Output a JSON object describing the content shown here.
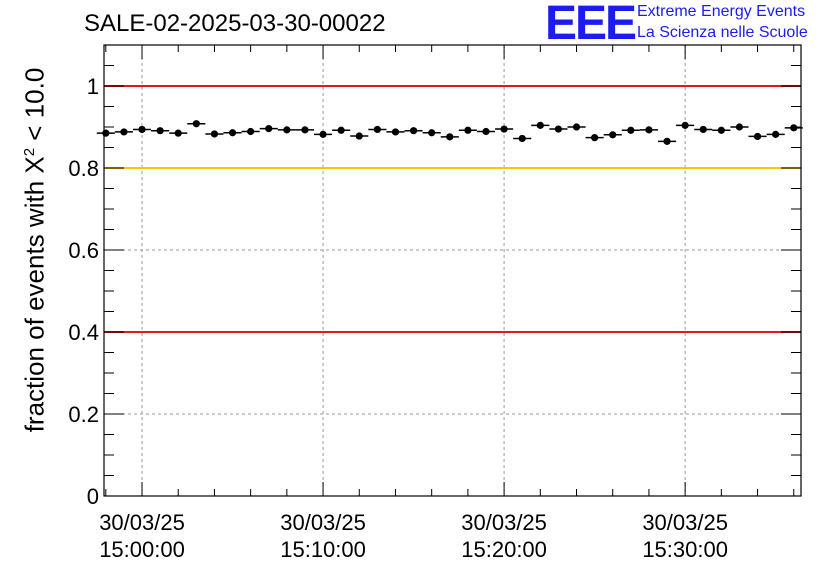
{
  "header": {
    "title": "SALE-02-2025-03-30-00022",
    "logo_text": "EEE",
    "brand_line1": "Extreme Energy Events",
    "brand_line2": "La Scienza nelle Scuole"
  },
  "y_axis": {
    "label_main": "fraction of events with Χ",
    "label_sup": "2",
    "label_tail": " < 10.0"
  },
  "colors": {
    "red_line": "#e8141e",
    "yellow_line": "#ffc400",
    "points": "#000000",
    "logo": "#1c1cf0",
    "grid": "#9a9a9a"
  },
  "chart_data": {
    "type": "scatter",
    "title": "SALE-02-2025-03-30-00022",
    "xlabel": "",
    "ylabel": "fraction of events with Χ² < 10.0",
    "ylim": [
      0,
      1.1
    ],
    "xlim_minutes": [
      -2.1,
      36.4
    ],
    "x_unit": "minutes after 30/03/25 15:00:00",
    "yticks": [
      0,
      0.2,
      0.4,
      0.6,
      0.8,
      1
    ],
    "ytick_labels": [
      "0",
      "0.2",
      "0.4",
      "0.6",
      "0.8",
      "1"
    ],
    "xticks": [
      {
        "minute": 0,
        "date": "30/03/25",
        "time": "15:00:00"
      },
      {
        "minute": 10,
        "date": "30/03/25",
        "time": "15:10:00"
      },
      {
        "minute": 20,
        "date": "30/03/25",
        "time": "15:20:00"
      },
      {
        "minute": 30,
        "date": "30/03/25",
        "time": "15:30:00"
      }
    ],
    "grid": true,
    "reference_lines": [
      {
        "y": 1.0,
        "color": "#e8141e"
      },
      {
        "y": 0.8,
        "color": "#ffc400"
      },
      {
        "y": 0.4,
        "color": "#e8141e"
      }
    ],
    "bin_halfwidth": 0.5,
    "series": [
      {
        "name": "fraction",
        "x": [
          -2,
          -1,
          0,
          1,
          2,
          3,
          4,
          5,
          6,
          7,
          8,
          9,
          10,
          11,
          12,
          13,
          14,
          15,
          16,
          17,
          18,
          19,
          20,
          21,
          22,
          23,
          24,
          25,
          26,
          27,
          28,
          29,
          30,
          31,
          32,
          33,
          34,
          35,
          36
        ],
        "y": [
          0.885,
          0.888,
          0.894,
          0.891,
          0.885,
          0.908,
          0.883,
          0.886,
          0.889,
          0.896,
          0.893,
          0.893,
          0.882,
          0.892,
          0.878,
          0.894,
          0.888,
          0.891,
          0.886,
          0.876,
          0.892,
          0.889,
          0.895,
          0.872,
          0.904,
          0.895,
          0.9,
          0.874,
          0.881,
          0.892,
          0.893,
          0.865,
          0.904,
          0.894,
          0.892,
          0.9,
          0.877,
          0.882,
          0.898
        ]
      }
    ]
  }
}
